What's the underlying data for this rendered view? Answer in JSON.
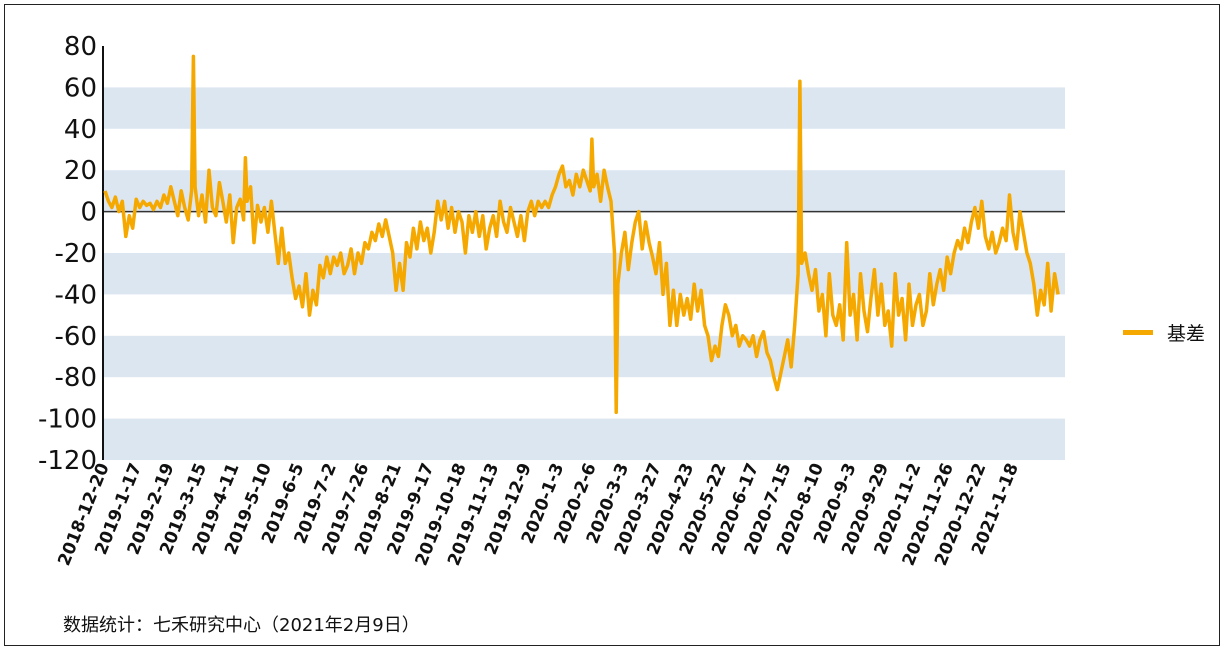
{
  "chart_data": {
    "type": "line",
    "title": "",
    "xlabel": "",
    "ylabel": "",
    "ylim": [
      -120,
      80
    ],
    "yticks": [
      80,
      60,
      40,
      20,
      0,
      -20,
      -40,
      -60,
      -80,
      -100,
      -120
    ],
    "xticks": [
      "2018-12-20",
      "2019-1-17",
      "2019-2-19",
      "2019-3-15",
      "2019-4-11",
      "2019-5-10",
      "2019-6-5",
      "2019-7-2",
      "2019-7-26",
      "2019-8-21",
      "2019-9-17",
      "2019-10-18",
      "2019-11-13",
      "2019-12-9",
      "2020-1-3",
      "2020-2-6",
      "2020-3-3",
      "2020-3-27",
      "2020-4-23",
      "2020-5-22",
      "2020-6-17",
      "2020-7-15",
      "2020-8-10",
      "2020-9-3",
      "2020-9-29",
      "2020-11-2",
      "2020-11-26",
      "2020-12-22",
      "2021-1-18"
    ],
    "legend_position": "right",
    "grid": "alternating horizontal bands",
    "band_color": "#DCE6F1",
    "series": [
      {
        "name": "基差",
        "color": "#F5A800",
        "points": [
          [
            0,
            10
          ],
          [
            0.2,
            5
          ],
          [
            0.4,
            2
          ],
          [
            0.6,
            7
          ],
          [
            0.8,
            0
          ],
          [
            1,
            5
          ],
          [
            1.2,
            -12
          ],
          [
            1.4,
            -2
          ],
          [
            1.6,
            -8
          ],
          [
            1.8,
            6
          ],
          [
            2,
            2
          ],
          [
            2.2,
            5
          ],
          [
            2.4,
            3
          ],
          [
            2.6,
            4
          ],
          [
            2.8,
            1
          ],
          [
            3,
            5
          ],
          [
            3.2,
            2
          ],
          [
            3.4,
            8
          ],
          [
            3.6,
            4
          ],
          [
            3.8,
            12
          ],
          [
            4,
            5
          ],
          [
            4.2,
            -2
          ],
          [
            4.4,
            10
          ],
          [
            4.6,
            2
          ],
          [
            4.8,
            -4
          ],
          [
            5,
            10
          ],
          [
            5.1,
            75
          ],
          [
            5.2,
            12
          ],
          [
            5.4,
            -2
          ],
          [
            5.6,
            8
          ],
          [
            5.8,
            -5
          ],
          [
            6,
            20
          ],
          [
            6.2,
            2
          ],
          [
            6.4,
            -2
          ],
          [
            6.6,
            14
          ],
          [
            6.8,
            5
          ],
          [
            7,
            -5
          ],
          [
            7.2,
            8
          ],
          [
            7.4,
            -15
          ],
          [
            7.6,
            2
          ],
          [
            7.8,
            6
          ],
          [
            8,
            -4
          ],
          [
            8.1,
            26
          ],
          [
            8.2,
            5
          ],
          [
            8.4,
            12
          ],
          [
            8.6,
            -15
          ],
          [
            8.8,
            3
          ],
          [
            9,
            -5
          ],
          [
            9.2,
            2
          ],
          [
            9.4,
            -10
          ],
          [
            9.6,
            5
          ],
          [
            9.8,
            -10
          ],
          [
            10,
            -25
          ],
          [
            10.2,
            -8
          ],
          [
            10.4,
            -25
          ],
          [
            10.6,
            -20
          ],
          [
            10.8,
            -32
          ],
          [
            11,
            -42
          ],
          [
            11.2,
            -36
          ],
          [
            11.4,
            -46
          ],
          [
            11.6,
            -30
          ],
          [
            11.8,
            -50
          ],
          [
            12,
            -38
          ],
          [
            12.2,
            -45
          ],
          [
            12.4,
            -26
          ],
          [
            12.6,
            -32
          ],
          [
            12.8,
            -22
          ],
          [
            13,
            -30
          ],
          [
            13.2,
            -22
          ],
          [
            13.4,
            -26
          ],
          [
            13.6,
            -20
          ],
          [
            13.8,
            -30
          ],
          [
            14,
            -26
          ],
          [
            14.2,
            -18
          ],
          [
            14.4,
            -30
          ],
          [
            14.6,
            -20
          ],
          [
            14.8,
            -25
          ],
          [
            15,
            -15
          ],
          [
            15.2,
            -18
          ],
          [
            15.4,
            -10
          ],
          [
            15.6,
            -14
          ],
          [
            15.8,
            -6
          ],
          [
            16,
            -12
          ],
          [
            16.2,
            -4
          ],
          [
            16.4,
            -12
          ],
          [
            16.6,
            -20
          ],
          [
            16.8,
            -38
          ],
          [
            17,
            -25
          ],
          [
            17.2,
            -38
          ],
          [
            17.4,
            -15
          ],
          [
            17.6,
            -22
          ],
          [
            17.8,
            -8
          ],
          [
            18,
            -18
          ],
          [
            18.2,
            -5
          ],
          [
            18.4,
            -14
          ],
          [
            18.6,
            -8
          ],
          [
            18.8,
            -20
          ],
          [
            19,
            -10
          ],
          [
            19.2,
            5
          ],
          [
            19.4,
            -4
          ],
          [
            19.6,
            5
          ],
          [
            19.8,
            -8
          ],
          [
            20,
            2
          ],
          [
            20.2,
            -10
          ],
          [
            20.4,
            0
          ],
          [
            20.6,
            -5
          ],
          [
            20.8,
            -20
          ],
          [
            21,
            -2
          ],
          [
            21.2,
            -10
          ],
          [
            21.4,
            0
          ],
          [
            21.6,
            -12
          ],
          [
            21.8,
            -2
          ],
          [
            22,
            -18
          ],
          [
            22.2,
            -8
          ],
          [
            22.4,
            -2
          ],
          [
            22.6,
            -12
          ],
          [
            22.8,
            5
          ],
          [
            23,
            -5
          ],
          [
            23.2,
            -10
          ],
          [
            23.4,
            2
          ],
          [
            23.6,
            -5
          ],
          [
            23.8,
            -12
          ],
          [
            24,
            -2
          ],
          [
            24.2,
            -14
          ],
          [
            24.4,
            0
          ],
          [
            24.6,
            5
          ],
          [
            24.8,
            -2
          ],
          [
            25,
            5
          ],
          [
            25.2,
            2
          ],
          [
            25.4,
            5
          ],
          [
            25.6,
            2
          ],
          [
            25.8,
            8
          ],
          [
            26,
            12
          ],
          [
            26.2,
            18
          ],
          [
            26.4,
            22
          ],
          [
            26.6,
            12
          ],
          [
            26.8,
            15
          ],
          [
            27,
            8
          ],
          [
            27.2,
            18
          ],
          [
            27.4,
            12
          ],
          [
            27.6,
            20
          ],
          [
            27.8,
            15
          ],
          [
            28,
            10
          ],
          [
            28.1,
            35
          ],
          [
            28.2,
            12
          ],
          [
            28.4,
            18
          ],
          [
            28.6,
            5
          ],
          [
            28.8,
            20
          ],
          [
            29,
            12
          ],
          [
            29.2,
            5
          ],
          [
            29.4,
            -20
          ],
          [
            29.5,
            -97
          ],
          [
            29.6,
            -35
          ],
          [
            29.8,
            -20
          ],
          [
            30,
            -10
          ],
          [
            30.2,
            -28
          ],
          [
            30.4,
            -15
          ],
          [
            30.6,
            -5
          ],
          [
            30.8,
            0
          ],
          [
            31,
            -18
          ],
          [
            31.2,
            -5
          ],
          [
            31.4,
            -15
          ],
          [
            31.6,
            -22
          ],
          [
            31.8,
            -30
          ],
          [
            32,
            -15
          ],
          [
            32.2,
            -40
          ],
          [
            32.4,
            -25
          ],
          [
            32.6,
            -55
          ],
          [
            32.8,
            -38
          ],
          [
            33,
            -55
          ],
          [
            33.2,
            -40
          ],
          [
            33.4,
            -50
          ],
          [
            33.6,
            -42
          ],
          [
            33.8,
            -52
          ],
          [
            34,
            -35
          ],
          [
            34.2,
            -48
          ],
          [
            34.4,
            -38
          ],
          [
            34.6,
            -55
          ],
          [
            34.8,
            -60
          ],
          [
            35,
            -72
          ],
          [
            35.2,
            -65
          ],
          [
            35.4,
            -70
          ],
          [
            35.6,
            -55
          ],
          [
            35.8,
            -45
          ],
          [
            36,
            -50
          ],
          [
            36.2,
            -60
          ],
          [
            36.4,
            -55
          ],
          [
            36.6,
            -65
          ],
          [
            36.8,
            -60
          ],
          [
            37,
            -62
          ],
          [
            37.2,
            -65
          ],
          [
            37.4,
            -60
          ],
          [
            37.6,
            -70
          ],
          [
            37.8,
            -62
          ],
          [
            38,
            -58
          ],
          [
            38.2,
            -68
          ],
          [
            38.4,
            -72
          ],
          [
            38.6,
            -80
          ],
          [
            38.8,
            -86
          ],
          [
            39,
            -78
          ],
          [
            39.2,
            -70
          ],
          [
            39.4,
            -62
          ],
          [
            39.6,
            -75
          ],
          [
            39.8,
            -55
          ],
          [
            40,
            -30
          ],
          [
            40.1,
            63
          ],
          [
            40.2,
            -25
          ],
          [
            40.4,
            -20
          ],
          [
            40.6,
            -30
          ],
          [
            40.8,
            -38
          ],
          [
            41,
            -28
          ],
          [
            41.2,
            -48
          ],
          [
            41.4,
            -40
          ],
          [
            41.6,
            -60
          ],
          [
            41.8,
            -30
          ],
          [
            42,
            -50
          ],
          [
            42.2,
            -55
          ],
          [
            42.4,
            -45
          ],
          [
            42.6,
            -62
          ],
          [
            42.8,
            -15
          ],
          [
            43,
            -50
          ],
          [
            43.2,
            -40
          ],
          [
            43.4,
            -62
          ],
          [
            43.6,
            -30
          ],
          [
            43.8,
            -48
          ],
          [
            44,
            -58
          ],
          [
            44.2,
            -42
          ],
          [
            44.4,
            -28
          ],
          [
            44.6,
            -50
          ],
          [
            44.8,
            -35
          ],
          [
            45,
            -55
          ],
          [
            45.2,
            -48
          ],
          [
            45.4,
            -65
          ],
          [
            45.6,
            -30
          ],
          [
            45.8,
            -50
          ],
          [
            46,
            -42
          ],
          [
            46.2,
            -62
          ],
          [
            46.4,
            -35
          ],
          [
            46.6,
            -55
          ],
          [
            46.8,
            -45
          ],
          [
            47,
            -40
          ],
          [
            47.2,
            -55
          ],
          [
            47.4,
            -48
          ],
          [
            47.6,
            -30
          ],
          [
            47.8,
            -45
          ],
          [
            48,
            -35
          ],
          [
            48.2,
            -28
          ],
          [
            48.4,
            -38
          ],
          [
            48.6,
            -22
          ],
          [
            48.8,
            -30
          ],
          [
            49,
            -20
          ],
          [
            49.2,
            -14
          ],
          [
            49.4,
            -18
          ],
          [
            49.6,
            -8
          ],
          [
            49.8,
            -15
          ],
          [
            50,
            -5
          ],
          [
            50.2,
            2
          ],
          [
            50.4,
            -8
          ],
          [
            50.6,
            5
          ],
          [
            50.8,
            -12
          ],
          [
            51,
            -18
          ],
          [
            51.2,
            -10
          ],
          [
            51.4,
            -20
          ],
          [
            51.6,
            -15
          ],
          [
            51.8,
            -8
          ],
          [
            52,
            -14
          ],
          [
            52.2,
            8
          ],
          [
            52.4,
            -10
          ],
          [
            52.6,
            -18
          ],
          [
            52.8,
            0
          ],
          [
            53,
            -10
          ],
          [
            53.2,
            -20
          ],
          [
            53.4,
            -25
          ],
          [
            53.6,
            -35
          ],
          [
            53.8,
            -50
          ],
          [
            54,
            -38
          ],
          [
            54.2,
            -45
          ],
          [
            54.4,
            -25
          ],
          [
            54.6,
            -48
          ],
          [
            54.8,
            -30
          ],
          [
            55,
            -40
          ]
        ]
      }
    ],
    "xmax": 55.4
  },
  "legend": {
    "label": "基差"
  },
  "source": "数据统计：七禾研究中心（2021年2月9日）"
}
